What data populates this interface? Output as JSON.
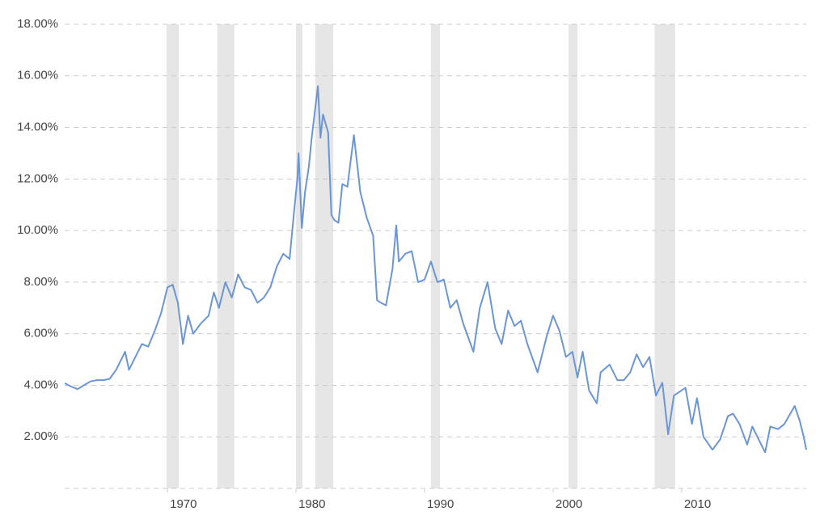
{
  "chart_data": {
    "type": "line",
    "color": "#6b96d6",
    "recession_color": "#e6e6e6",
    "grid": true,
    "xlim": [
      1962,
      2019.7
    ],
    "xticks": [
      1970,
      1980,
      1990,
      2000,
      2010
    ],
    "ylim": [
      0,
      18
    ],
    "yticks": [
      {
        "value": 2,
        "label": "2.00%"
      },
      {
        "value": 4,
        "label": "4.00%"
      },
      {
        "value": 6,
        "label": "6.00%"
      },
      {
        "value": 8,
        "label": "8.00%"
      },
      {
        "value": 10,
        "label": "10.00%"
      },
      {
        "value": 12,
        "label": "12.00%"
      },
      {
        "value": 14,
        "label": "14.00%"
      },
      {
        "value": 16,
        "label": "16.00%"
      },
      {
        "value": 18,
        "label": "18.00%"
      }
    ],
    "recessions": [
      [
        1969.92,
        1970.87
      ],
      [
        1973.87,
        1975.2
      ],
      [
        1980.0,
        1980.5
      ],
      [
        1981.5,
        1982.9
      ],
      [
        1990.5,
        1991.2
      ],
      [
        2001.2,
        2001.9
      ],
      [
        2007.9,
        2009.5
      ]
    ],
    "x": [
      1962.0,
      1962.5,
      1963.0,
      1963.5,
      1964.0,
      1964.5,
      1965.0,
      1965.5,
      1966.0,
      1966.7,
      1967.0,
      1967.5,
      1968.0,
      1968.5,
      1969.0,
      1969.5,
      1970.0,
      1970.4,
      1970.8,
      1971.2,
      1971.6,
      1972.0,
      1972.6,
      1973.2,
      1973.6,
      1974.0,
      1974.5,
      1975.0,
      1975.5,
      1976.0,
      1976.5,
      1977.0,
      1977.5,
      1978.0,
      1978.5,
      1979.0,
      1979.5,
      1979.8,
      1980.1,
      1980.2,
      1980.45,
      1980.7,
      1981.0,
      1981.2,
      1981.7,
      1981.9,
      1982.1,
      1982.5,
      1982.75,
      1983.0,
      1983.3,
      1983.6,
      1984.0,
      1984.5,
      1985.0,
      1985.5,
      1986.0,
      1986.3,
      1986.6,
      1987.0,
      1987.5,
      1987.8,
      1988.0,
      1988.5,
      1989.0,
      1989.5,
      1990.0,
      1990.5,
      1991.0,
      1991.5,
      1992.0,
      1992.5,
      1993.0,
      1993.8,
      1994.3,
      1994.9,
      1995.5,
      1996.0,
      1996.5,
      1997.0,
      1997.5,
      1998.0,
      1998.8,
      1999.5,
      2000.0,
      2000.5,
      2001.0,
      2001.5,
      2001.9,
      2002.3,
      2002.8,
      2003.4,
      2003.7,
      2004.4,
      2005.0,
      2005.5,
      2006.0,
      2006.5,
      2007.0,
      2007.5,
      2008.0,
      2008.5,
      2008.95,
      2009.4,
      2010.0,
      2010.3,
      2010.8,
      2011.2,
      2011.7,
      2012.4,
      2013.0,
      2013.6,
      2014.0,
      2014.5,
      2015.1,
      2015.5,
      2016.5,
      2016.9,
      2017.5,
      2018.0,
      2018.8,
      2019.2,
      2019.5,
      2019.7
    ],
    "values": [
      4.08,
      3.95,
      3.85,
      4.0,
      4.15,
      4.2,
      4.2,
      4.25,
      4.6,
      5.3,
      4.6,
      5.1,
      5.6,
      5.5,
      6.1,
      6.8,
      7.8,
      7.9,
      7.2,
      5.6,
      6.7,
      6.0,
      6.4,
      6.7,
      7.6,
      7.0,
      8.0,
      7.4,
      8.3,
      7.8,
      7.7,
      7.2,
      7.4,
      7.8,
      8.6,
      9.1,
      8.9,
      10.5,
      12.0,
      13.0,
      10.1,
      11.5,
      12.5,
      13.5,
      15.6,
      13.6,
      14.5,
      13.8,
      10.6,
      10.4,
      10.3,
      11.8,
      11.7,
      13.7,
      11.5,
      10.5,
      9.8,
      7.3,
      7.2,
      7.1,
      8.5,
      10.2,
      8.8,
      9.1,
      9.2,
      8.0,
      8.1,
      8.8,
      8.0,
      8.1,
      7.0,
      7.3,
      6.4,
      5.3,
      7.0,
      8.0,
      6.2,
      5.6,
      6.9,
      6.3,
      6.5,
      5.6,
      4.5,
      5.9,
      6.7,
      6.1,
      5.1,
      5.3,
      4.3,
      5.3,
      3.8,
      3.3,
      4.5,
      4.8,
      4.2,
      4.2,
      4.5,
      5.2,
      4.7,
      5.1,
      3.6,
      4.1,
      2.1,
      3.6,
      3.8,
      3.9,
      2.5,
      3.5,
      2.0,
      1.5,
      1.9,
      2.8,
      2.9,
      2.5,
      1.7,
      2.4,
      1.4,
      2.4,
      2.3,
      2.5,
      3.2,
      2.6,
      2.0,
      1.5
    ]
  }
}
